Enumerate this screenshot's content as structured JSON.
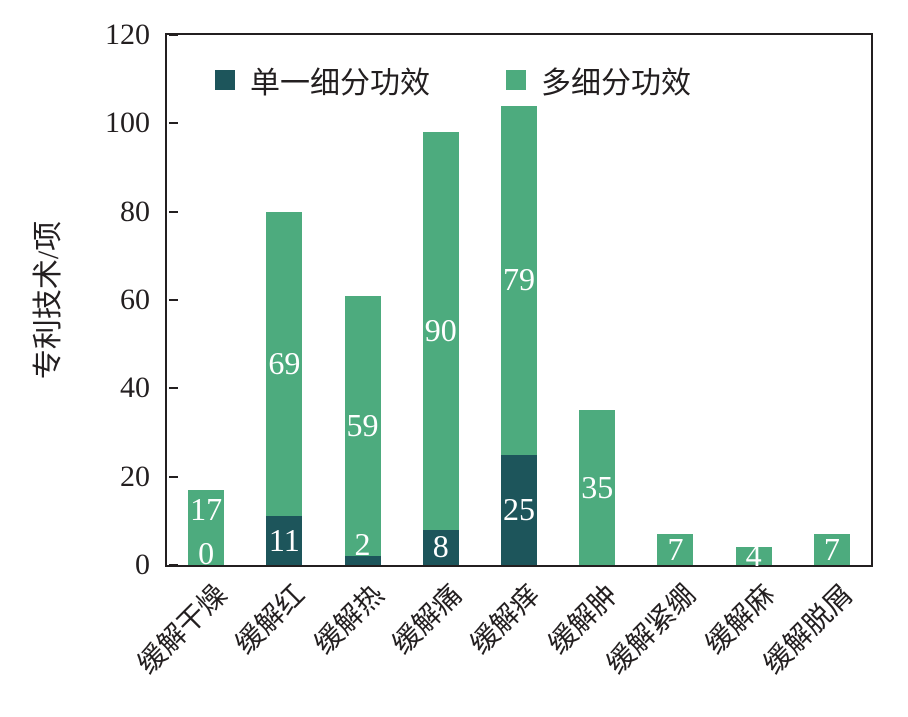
{
  "chart_data": {
    "type": "bar",
    "subtype": "stacked-vertical",
    "title": "",
    "ylabel": "专利技术/项",
    "xlabel": "",
    "ylim": [
      0,
      120
    ],
    "yticks": [
      0,
      20,
      40,
      60,
      80,
      100,
      120
    ],
    "grid": false,
    "legend_position": "top-inside",
    "categories": [
      "缓解干燥",
      "缓解红",
      "缓解热",
      "缓解痛",
      "缓解痒",
      "缓解肿",
      "缓解紧绷",
      "缓解麻",
      "缓解脱屑"
    ],
    "series": [
      {
        "name": "单一细分功效",
        "color": "#1d555b",
        "values": [
          0,
          11,
          2,
          8,
          25,
          null,
          null,
          null,
          null
        ]
      },
      {
        "name": "多细分功效",
        "color": "#4dab7e",
        "values": [
          17,
          69,
          59,
          90,
          79,
          35,
          7,
          4,
          7
        ]
      }
    ],
    "bar_value_label_color": "#ffffff",
    "axis_color": "#231f20"
  }
}
